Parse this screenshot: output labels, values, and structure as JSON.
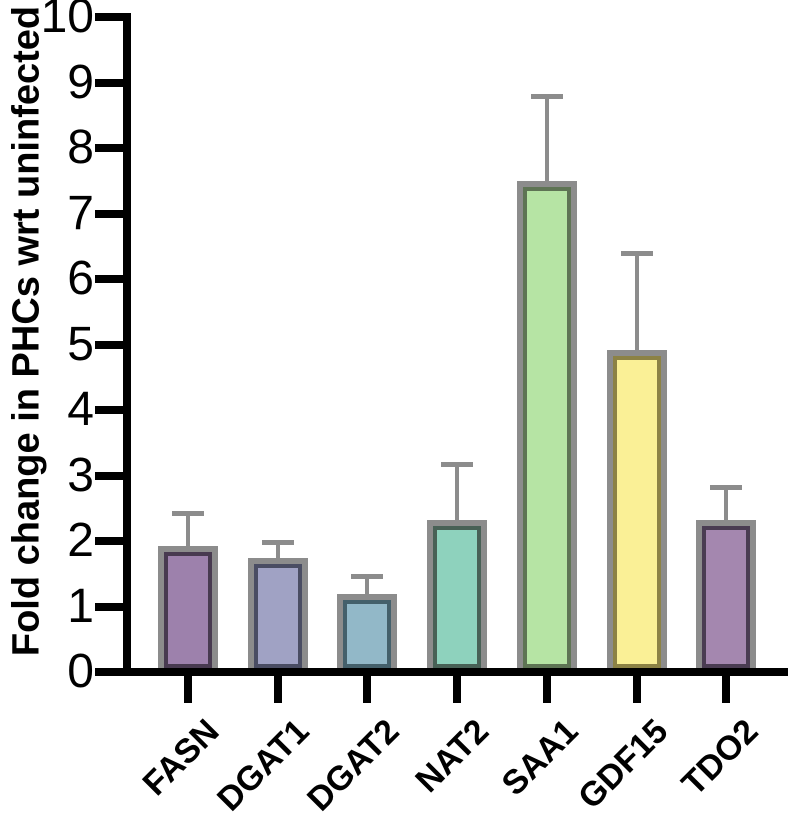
{
  "chart_data": {
    "type": "bar",
    "title": "",
    "xlabel": "",
    "ylabel": "Fold change in PHCs wrt uninfected",
    "ylim": [
      0,
      10
    ],
    "yticks": [
      "0",
      "1",
      "2",
      "3",
      "4",
      "5",
      "6",
      "7",
      "8",
      "9",
      "10"
    ],
    "grid": false,
    "legend": null,
    "categories": [
      "FASN",
      "DGAT1",
      "DGAT2",
      "NAT2",
      "SAA1",
      "GDF15",
      "TDO2"
    ],
    "values": [
      1.93,
      1.74,
      1.19,
      2.32,
      7.5,
      4.92,
      2.32
    ],
    "errors_plus": [
      0.5,
      0.25,
      0.28,
      0.86,
      1.3,
      1.47,
      0.5
    ],
    "bar_fill_colors": [
      "#9d81ac",
      "#a0a2c4",
      "#92b8c8",
      "#8ed2bd",
      "#b6e4a4",
      "#faf096",
      "#a487af"
    ],
    "bar_edge_colors": [
      "#483a50",
      "#4a4d63",
      "#44606b",
      "#486156",
      "#5e7454",
      "#8c8245",
      "#4a3c52"
    ],
    "bar_outer_border_color": "#8c8c8c",
    "error_bar_color": "#8c8c8c",
    "axis_color": "#000000"
  }
}
